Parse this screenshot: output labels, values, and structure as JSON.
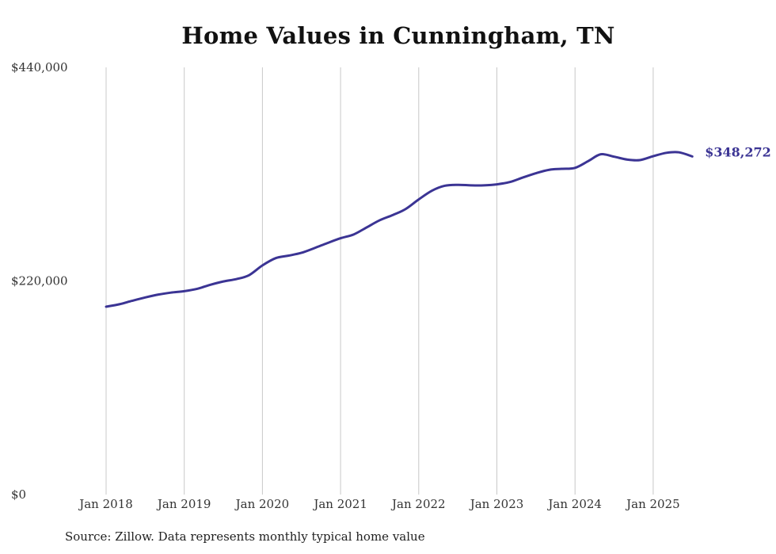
{
  "chart_data": {
    "type": "line",
    "title": "Home Values in Cunningham, TN",
    "source_note": "Source: Zillow. Data represents monthly typical home value",
    "xlabel": "",
    "ylabel": "",
    "ylim": [
      0,
      440000
    ],
    "y_ticks": [
      {
        "value": 0,
        "label": "$0"
      },
      {
        "value": 220000,
        "label": "$220,000"
      },
      {
        "value": 440000,
        "label": "$440,000"
      }
    ],
    "x_ticks": [
      {
        "value": 2018.0,
        "label": "Jan 2018"
      },
      {
        "value": 2019.0,
        "label": "Jan 2019"
      },
      {
        "value": 2020.0,
        "label": "Jan 2020"
      },
      {
        "value": 2021.0,
        "label": "Jan 2021"
      },
      {
        "value": 2022.0,
        "label": "Jan 2022"
      },
      {
        "value": 2023.0,
        "label": "Jan 2023"
      },
      {
        "value": 2024.0,
        "label": "Jan 2024"
      },
      {
        "value": 2025.0,
        "label": "Jan 2025"
      }
    ],
    "xlim": [
      2017.5,
      2025.9
    ],
    "grid": {
      "vertical": true,
      "horizontal": false
    },
    "series_color": "#3b3494",
    "end_label": "$348,272",
    "series": [
      {
        "values": [
          [
            2018.0,
            193500
          ],
          [
            2018.17,
            196000
          ],
          [
            2018.33,
            199500
          ],
          [
            2018.5,
            203000
          ],
          [
            2018.67,
            206000
          ],
          [
            2018.83,
            208000
          ],
          [
            2019.0,
            209500
          ],
          [
            2019.17,
            212000
          ],
          [
            2019.33,
            216000
          ],
          [
            2019.5,
            219500
          ],
          [
            2019.67,
            222000
          ],
          [
            2019.83,
            226000
          ],
          [
            2020.0,
            236000
          ],
          [
            2020.17,
            243500
          ],
          [
            2020.33,
            246000
          ],
          [
            2020.5,
            249000
          ],
          [
            2020.67,
            254000
          ],
          [
            2020.83,
            259000
          ],
          [
            2021.0,
            264000
          ],
          [
            2021.17,
            268000
          ],
          [
            2021.33,
            275000
          ],
          [
            2021.5,
            282500
          ],
          [
            2021.67,
            288000
          ],
          [
            2021.83,
            294000
          ],
          [
            2022.0,
            304000
          ],
          [
            2022.17,
            313000
          ],
          [
            2022.33,
            318000
          ],
          [
            2022.5,
            319000
          ],
          [
            2022.67,
            318500
          ],
          [
            2022.83,
            318500
          ],
          [
            2023.0,
            319500
          ],
          [
            2023.17,
            322000
          ],
          [
            2023.33,
            326500
          ],
          [
            2023.5,
            331000
          ],
          [
            2023.67,
            334500
          ],
          [
            2023.83,
            335500
          ],
          [
            2024.0,
            336500
          ],
          [
            2024.17,
            343500
          ],
          [
            2024.33,
            350500
          ],
          [
            2024.5,
            348000
          ],
          [
            2024.67,
            345000
          ],
          [
            2024.83,
            344500
          ],
          [
            2025.0,
            348500
          ],
          [
            2025.17,
            352000
          ],
          [
            2025.33,
            352500
          ],
          [
            2025.5,
            348272
          ]
        ]
      }
    ]
  }
}
